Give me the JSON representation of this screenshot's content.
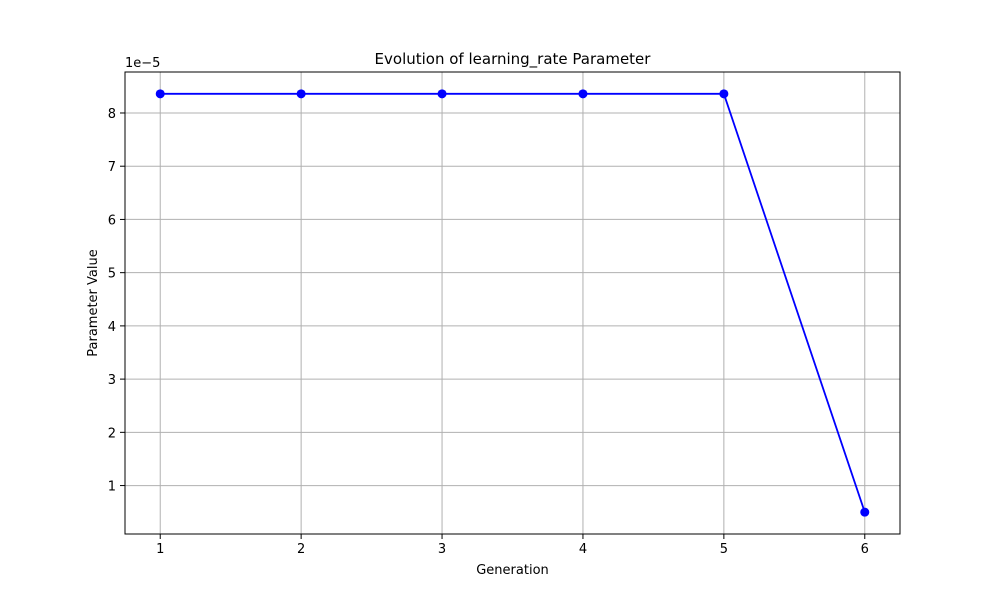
{
  "chart_data": {
    "type": "line",
    "title": "Evolution of learning_rate Parameter",
    "xlabel": "Generation",
    "ylabel": "Parameter Value",
    "y_offset_label": "1e−5",
    "x": [
      1,
      2,
      3,
      4,
      5,
      6
    ],
    "series": [
      {
        "values": [
          8.36e-05,
          8.36e-05,
          8.36e-05,
          8.36e-05,
          8.36e-05,
          5e-06
        ],
        "color": "#0000ff",
        "marker": "circle"
      }
    ],
    "x_ticks": [
      1,
      2,
      3,
      4,
      5,
      6
    ],
    "x_tick_labels": [
      "1",
      "2",
      "3",
      "4",
      "5",
      "6"
    ],
    "y_ticks": [
      1e-05,
      2e-05,
      3e-05,
      4e-05,
      5e-05,
      6e-05,
      7e-05,
      8e-05
    ],
    "y_tick_labels": [
      "1",
      "2",
      "3",
      "4",
      "5",
      "6",
      "7",
      "8"
    ],
    "xlim": [
      0.75,
      6.25
    ],
    "ylim": [
      9e-07,
      8.77e-05
    ],
    "grid": true,
    "grid_color": "#b0b0b0",
    "legend": "none"
  }
}
